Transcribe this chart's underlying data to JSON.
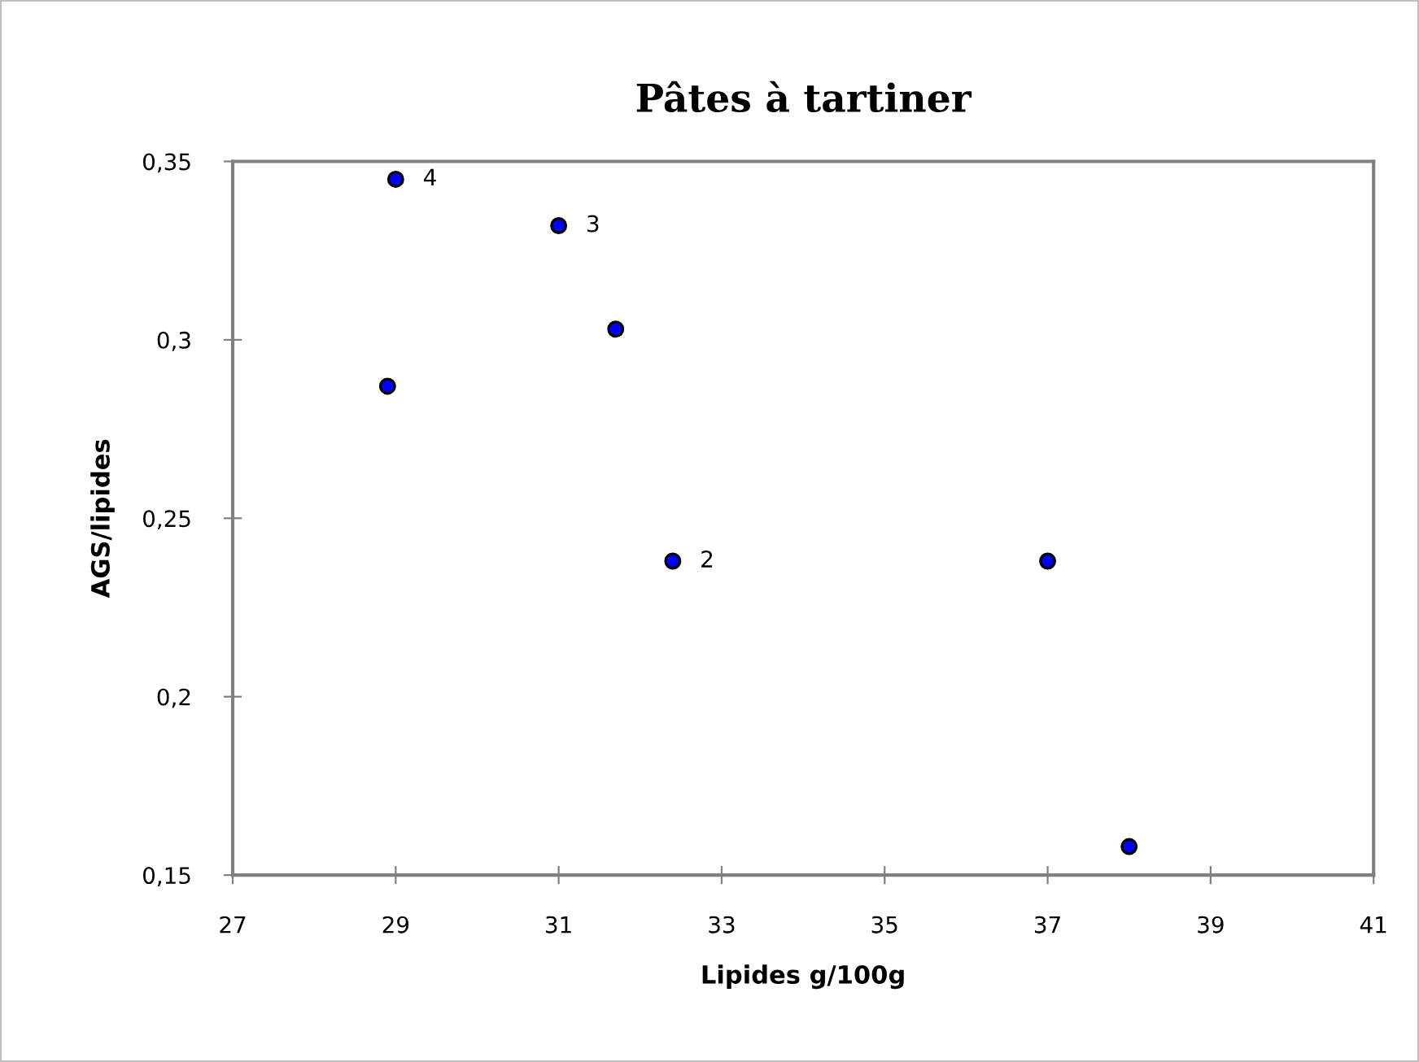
{
  "chart_data": {
    "type": "scatter",
    "title": "Pâtes à tartiner",
    "xlabel": "Lipides g/100g",
    "ylabel": "AGS/lipides",
    "series": [
      {
        "color": "#0000ff",
        "x": [
          29.0,
          31.0,
          31.7,
          28.9,
          32.4,
          37.0,
          38.0
        ],
        "values": [
          0.345,
          0.332,
          0.303,
          0.287,
          0.238,
          0.238,
          0.158
        ]
      }
    ],
    "annotations": [
      {
        "text": "4",
        "x": 29.0,
        "y": 0.345
      },
      {
        "text": "3",
        "x": 31.0,
        "y": 0.332
      },
      {
        "text": "2",
        "x": 32.4,
        "y": 0.238
      }
    ],
    "xlim": [
      27,
      41
    ],
    "xticks": [
      27,
      29,
      31,
      33,
      35,
      37,
      39,
      41
    ],
    "ylim": [
      0.15,
      0.35
    ],
    "yticks": [
      {
        "value": 0.15,
        "label": "0,15"
      },
      {
        "value": 0.2,
        "label": "0,2"
      },
      {
        "value": 0.25,
        "label": "0,25"
      },
      {
        "value": 0.3,
        "label": "0,3"
      },
      {
        "value": 0.35,
        "label": "0,35"
      }
    ],
    "grid": false,
    "legend": false,
    "marker": "circle"
  }
}
